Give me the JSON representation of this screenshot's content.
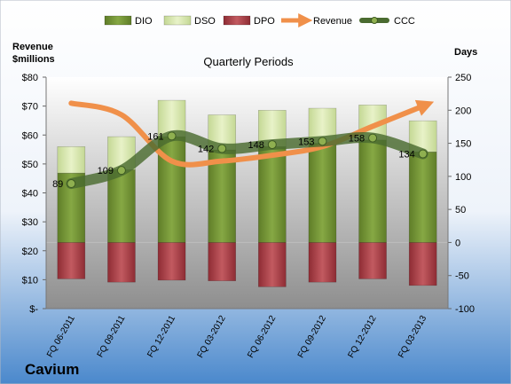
{
  "chart_data": {
    "type": "bar",
    "title": "Quarterly Periods",
    "company": "Cavium",
    "left_axis_label": [
      "Revenue",
      "$millions"
    ],
    "right_axis_label": "Days",
    "left_ticks": [
      "$-",
      "$10",
      "$20",
      "$30",
      "$40",
      "$50",
      "$60",
      "$70",
      "$80"
    ],
    "right_ticks": [
      "-100",
      "-50",
      "0",
      "50",
      "100",
      "150",
      "200",
      "250"
    ],
    "left_ylim": [
      0,
      80
    ],
    "right_ylim": [
      -100,
      250
    ],
    "categories": [
      "FQ 06-2011",
      "FQ 09-2011",
      "FQ 12-2011",
      "FQ 03-2012",
      "FQ 06-2012",
      "FQ 09-2012",
      "FQ 12-2012",
      "FQ 03-2013"
    ],
    "series": [
      {
        "name": "DIO",
        "axis": "days",
        "values": [
          105,
          110,
          160,
          140,
          145,
          150,
          155,
          137
        ]
      },
      {
        "name": "DSO",
        "axis": "days",
        "values": [
          40,
          50,
          55,
          53,
          55,
          53,
          53,
          47
        ]
      },
      {
        "name": "DPO",
        "axis": "days",
        "values": [
          -55,
          -60,
          -57,
          -58,
          -67,
          -60,
          -55,
          -65
        ]
      },
      {
        "name": "Revenue",
        "axis": "revenue",
        "values": [
          71,
          67,
          51,
          51,
          53,
          56,
          63,
          70
        ]
      },
      {
        "name": "CCC",
        "axis": "days",
        "values": [
          89,
          109,
          161,
          142,
          148,
          153,
          158,
          134
        ]
      }
    ],
    "ccc_labels": [
      "89",
      "109",
      "161",
      "142",
      "148",
      "153",
      "158",
      "134"
    ],
    "legend": [
      "DIO",
      "DSO",
      "DPO",
      "Revenue",
      "CCC"
    ],
    "legend_position": "top",
    "colors": {
      "dio": "#7a9a3a",
      "dso": "#d6e6a8",
      "dpo": "#b0424a",
      "revenue": "#f0904a",
      "ccc": "#4a6b30",
      "bg_top": "#ffffff",
      "bg_bottom": "#4a88cc"
    }
  }
}
